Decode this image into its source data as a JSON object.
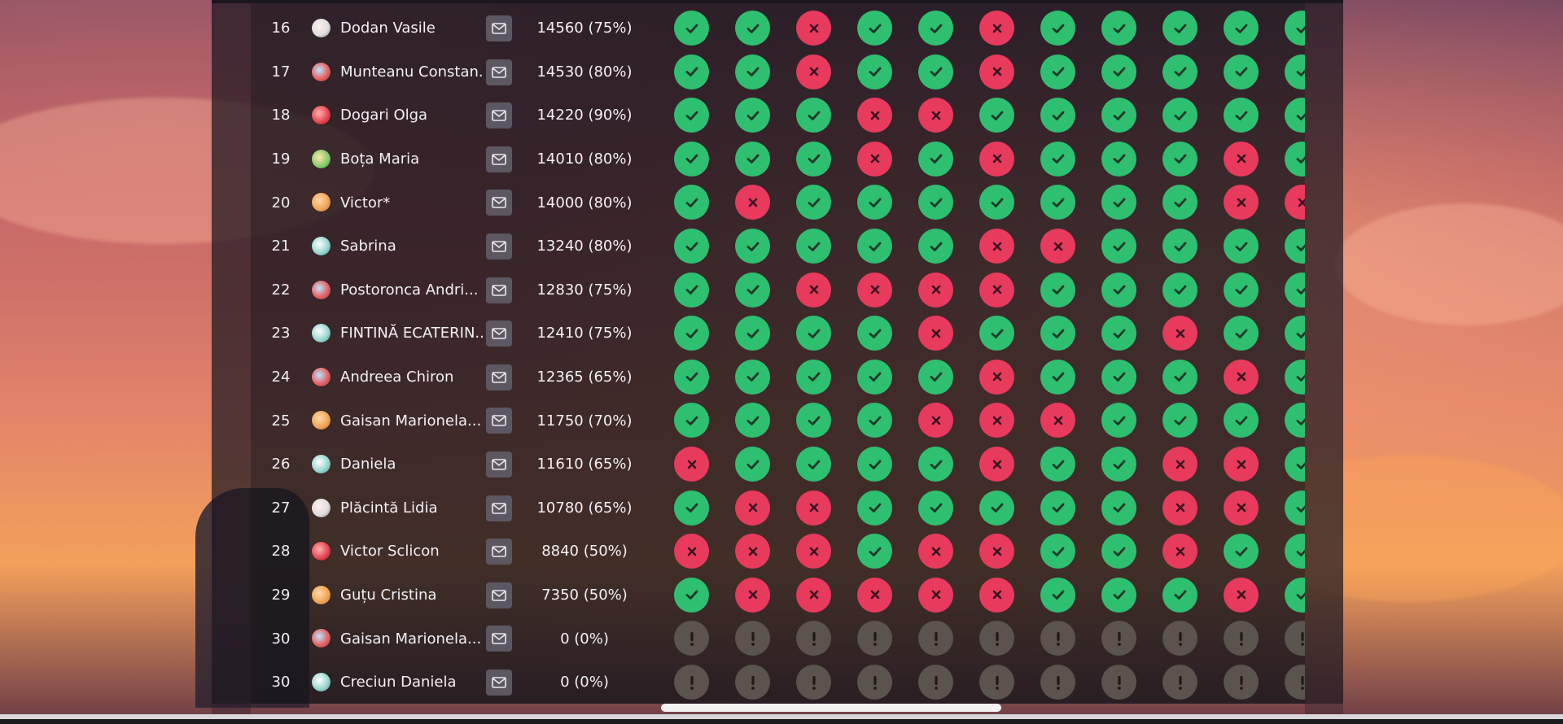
{
  "leaderboard": {
    "rows": [
      {
        "rank": "16",
        "name": "Dodan Vasile",
        "score": "14560 (75%)",
        "answers": [
          "ok",
          "ok",
          "no",
          "ok",
          "ok",
          "no",
          "ok",
          "ok",
          "ok",
          "ok",
          "ok"
        ]
      },
      {
        "rank": "17",
        "name": "Munteanu Constan...",
        "score": "14530 (80%)",
        "answers": [
          "ok",
          "ok",
          "no",
          "ok",
          "ok",
          "no",
          "ok",
          "ok",
          "ok",
          "ok",
          "ok"
        ]
      },
      {
        "rank": "18",
        "name": "Dogari Olga",
        "score": "14220 (90%)",
        "answers": [
          "ok",
          "ok",
          "ok",
          "no",
          "no",
          "ok",
          "ok",
          "ok",
          "ok",
          "ok",
          "ok"
        ]
      },
      {
        "rank": "19",
        "name": "Boța Maria",
        "score": "14010 (80%)",
        "answers": [
          "ok",
          "ok",
          "ok",
          "no",
          "ok",
          "no",
          "ok",
          "ok",
          "ok",
          "no",
          "ok"
        ]
      },
      {
        "rank": "20",
        "name": "Victor*",
        "score": "14000 (80%)",
        "answers": [
          "ok",
          "no",
          "ok",
          "ok",
          "ok",
          "ok",
          "ok",
          "ok",
          "ok",
          "no",
          "no"
        ]
      },
      {
        "rank": "21",
        "name": "Sabrina",
        "score": "13240 (80%)",
        "answers": [
          "ok",
          "ok",
          "ok",
          "ok",
          "ok",
          "no",
          "no",
          "ok",
          "ok",
          "ok",
          "ok"
        ]
      },
      {
        "rank": "22",
        "name": "Postoronca Andri...",
        "score": "12830 (75%)",
        "answers": [
          "ok",
          "ok",
          "no",
          "no",
          "no",
          "no",
          "ok",
          "ok",
          "ok",
          "ok",
          "ok"
        ]
      },
      {
        "rank": "23",
        "name": "FINTINĂ ECATERIN...",
        "score": "12410 (75%)",
        "answers": [
          "ok",
          "ok",
          "ok",
          "ok",
          "no",
          "ok",
          "ok",
          "ok",
          "no",
          "ok",
          "ok"
        ]
      },
      {
        "rank": "24",
        "name": "Andreea Chiron",
        "score": "12365 (65%)",
        "answers": [
          "ok",
          "ok",
          "ok",
          "ok",
          "ok",
          "no",
          "ok",
          "ok",
          "ok",
          "no",
          "ok"
        ]
      },
      {
        "rank": "25",
        "name": "Gaisan Marionela...",
        "score": "11750 (70%)",
        "answers": [
          "ok",
          "ok",
          "ok",
          "ok",
          "no",
          "no",
          "no",
          "ok",
          "ok",
          "ok",
          "ok"
        ]
      },
      {
        "rank": "26",
        "name": "Daniela",
        "score": "11610 (65%)",
        "answers": [
          "no",
          "ok",
          "ok",
          "ok",
          "ok",
          "no",
          "ok",
          "ok",
          "no",
          "no",
          "ok"
        ]
      },
      {
        "rank": "27",
        "name": "Plăcintă Lidia",
        "score": "10780 (65%)",
        "answers": [
          "ok",
          "no",
          "no",
          "ok",
          "ok",
          "ok",
          "ok",
          "ok",
          "no",
          "no",
          "ok"
        ]
      },
      {
        "rank": "28",
        "name": "Victor Sclicon",
        "score": "8840 (50%)",
        "answers": [
          "no",
          "no",
          "no",
          "ok",
          "no",
          "no",
          "ok",
          "ok",
          "no",
          "ok",
          "ok"
        ]
      },
      {
        "rank": "29",
        "name": "Guțu Cristina",
        "score": "7350 (50%)",
        "answers": [
          "ok",
          "no",
          "no",
          "no",
          "no",
          "no",
          "ok",
          "ok",
          "ok",
          "no",
          "ok"
        ]
      },
      {
        "rank": "30",
        "name": "Gaisan Marionela...",
        "score": "0 (0%)",
        "answers": [
          "na",
          "na",
          "na",
          "na",
          "na",
          "na",
          "na",
          "na",
          "na",
          "na",
          "na"
        ]
      },
      {
        "rank": "30",
        "name": "Creciun Daniela",
        "score": "0 (0%)",
        "answers": [
          "na",
          "na",
          "na",
          "na",
          "na",
          "na",
          "na",
          "na",
          "na",
          "na",
          "na"
        ]
      }
    ]
  },
  "icons": {
    "mail": "mail-icon",
    "correct": "check-icon",
    "incorrect": "cross-icon",
    "unanswered": "exclamation-icon"
  },
  "colors": {
    "correct": "#2fbf71",
    "incorrect": "#e83a5d",
    "unanswered": "#5b534d",
    "mail_button": "#5d5761"
  }
}
